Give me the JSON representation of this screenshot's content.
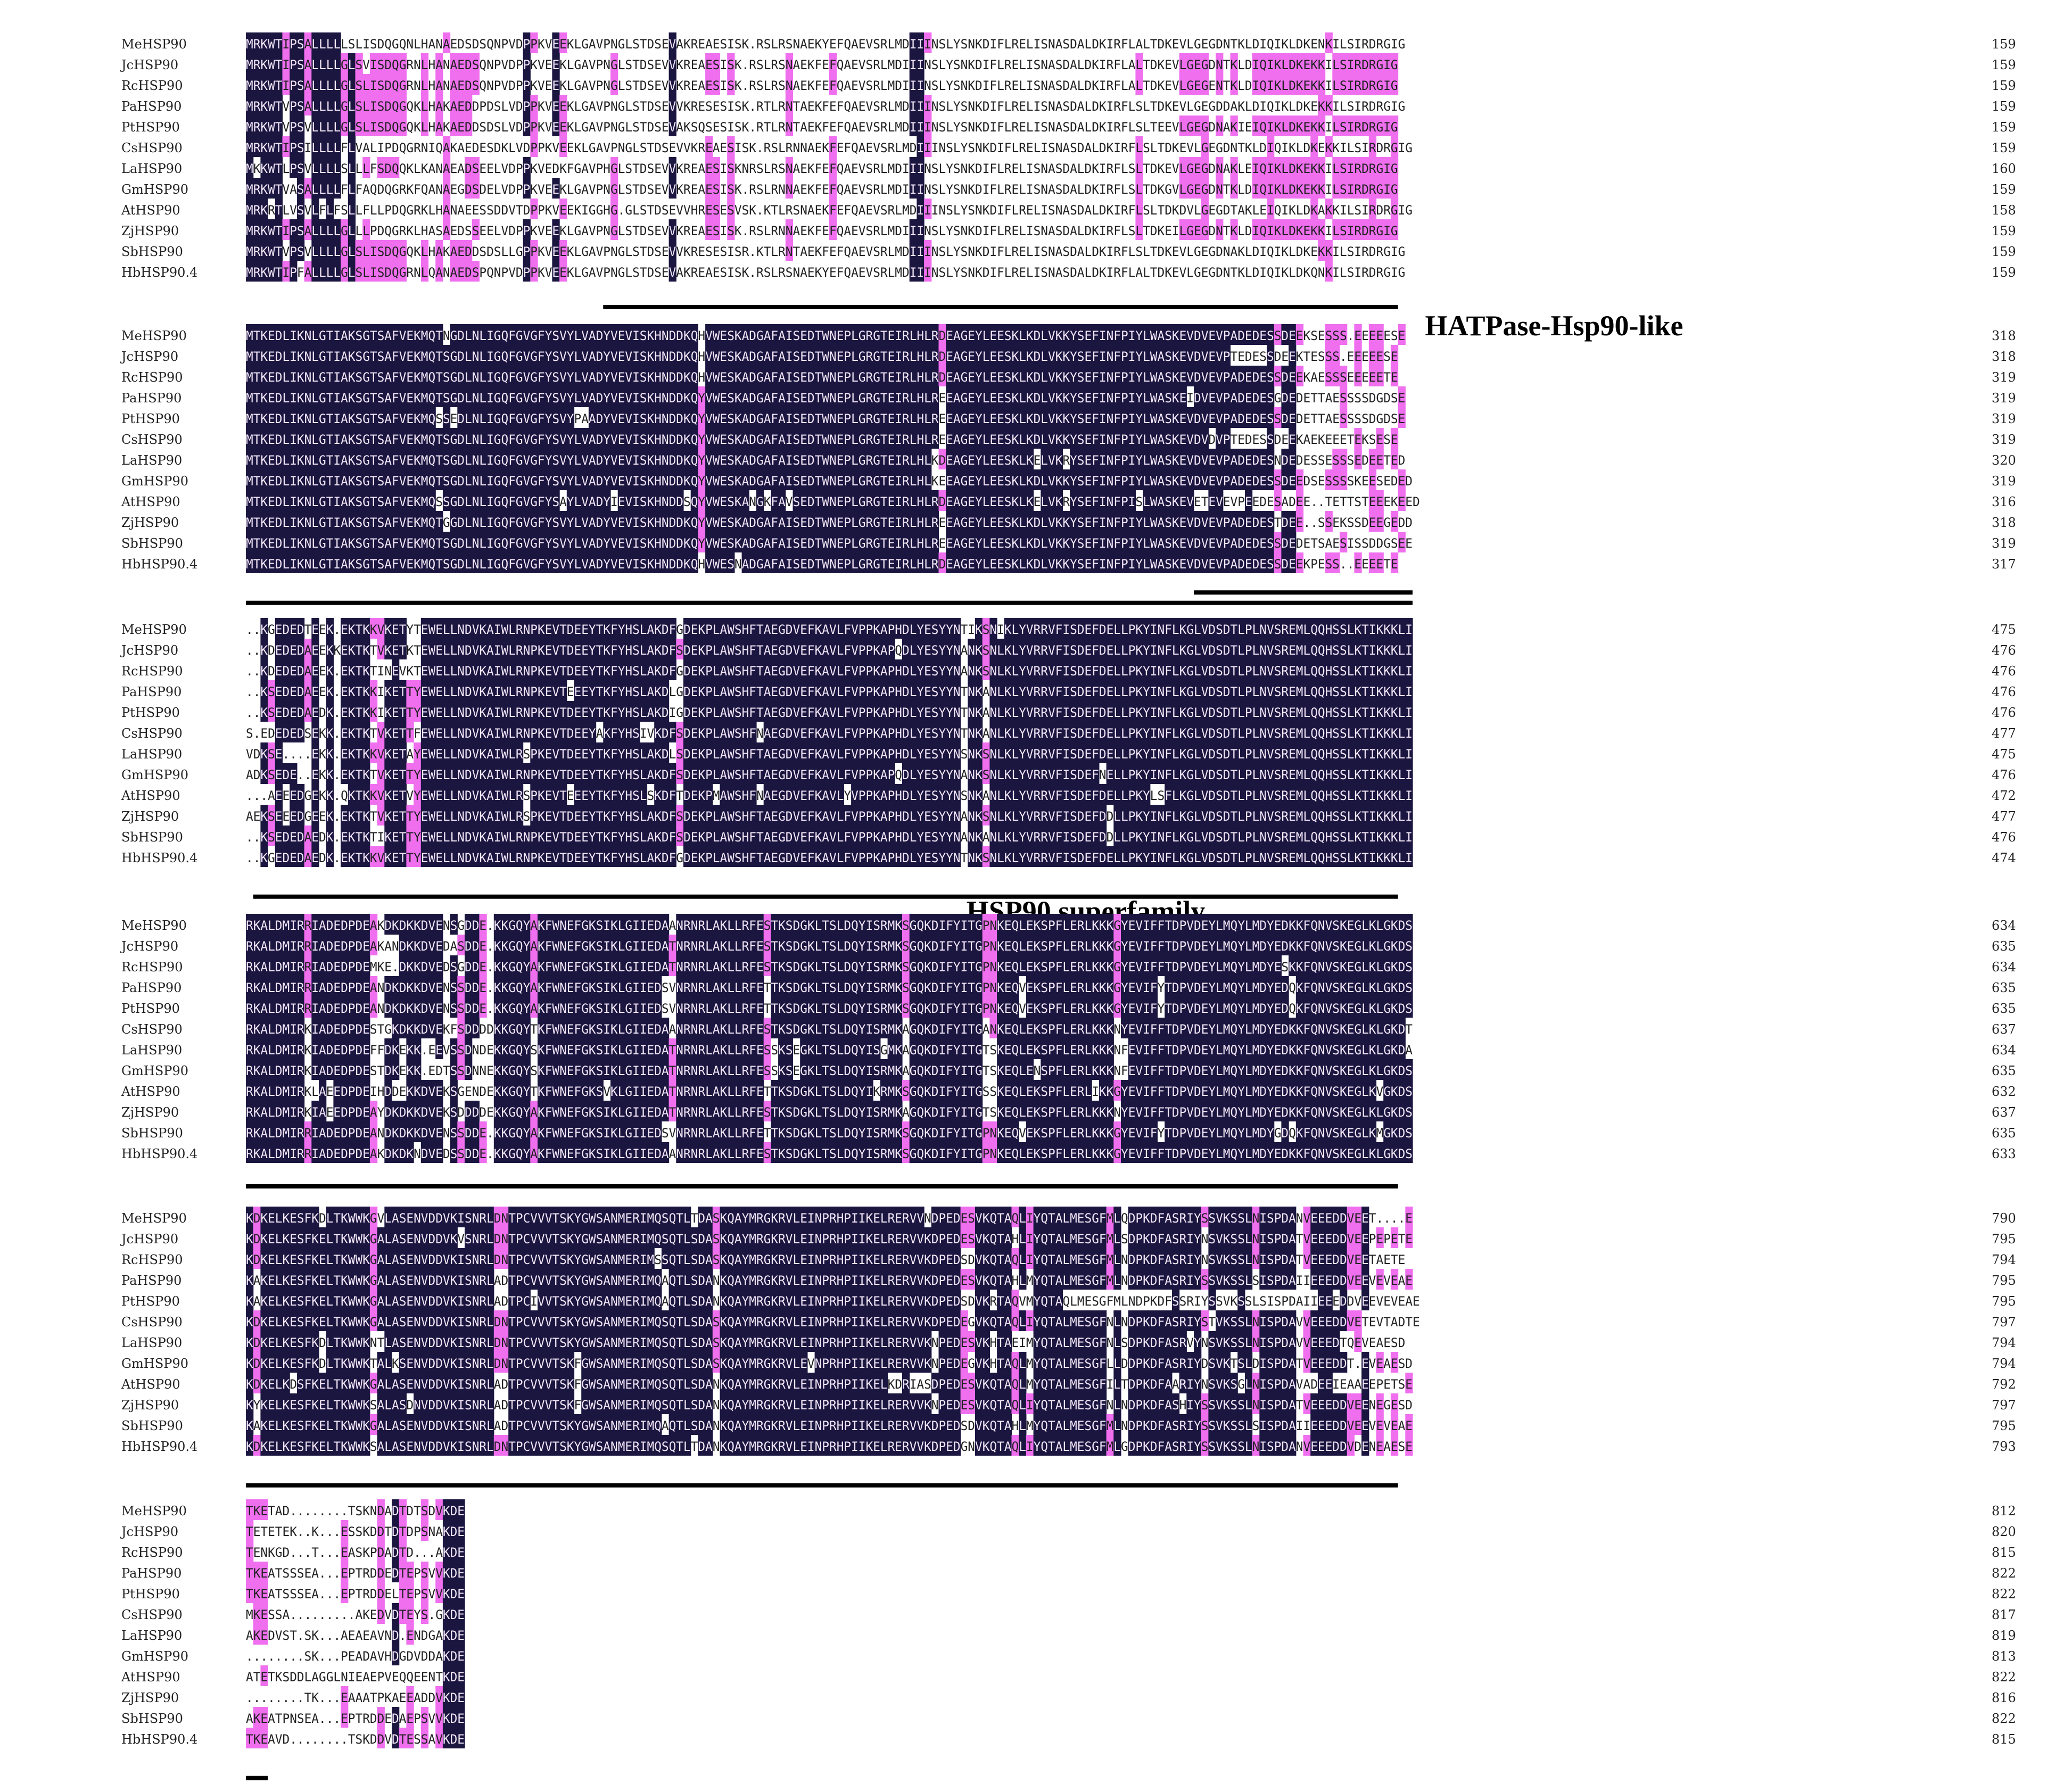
{
  "colors": {
    "identical": "#1b1640",
    "similar": "#ef6fef",
    "identical_text": "#f2e6f6",
    "plain_text": "#222222",
    "bar": "#000000"
  },
  "species": [
    "MeHSP90",
    "JcHSP90",
    "RcHSP90",
    "PaHSP90",
    "PtHSP90",
    "CsHSP90",
    "LaHSP90",
    "GmHSP90",
    "AtHSP90",
    "ZjHSP90",
    "SbHSP90",
    "HbHSP90.4"
  ],
  "blocks": [
    {
      "sequences": [
        "MRKWTIPSALLLLLSLISDQGQNLHANAEDSDSQNPVDPPKVEEKLGAVPNGLSTDSEVAKREAESISK.RSLRSNAEKYEFQAEVSRLMDIIINSLYSNKDIFLRELISNASDALDKIRFLALTDKEVLGEGDNTKLDIQIKLDKENKILSIRDRGIG",
        "MRKWTIPSALLLLGLSVISDQGRNLHANAEDSQNPVDPPKVEEKLGAVPNGLSTDSEVVKREAESISK.RSLRSNAEKFEFQAEVSRLMDIIINSLYSNKDIFLRELISNASDALDKIRFLALTDKEVLGEGDNTKLDIQIKLDKEKKILSIRDRGIG",
        "MRKWTIPSALLLLGLSLISDQGRNLHANAEDSQNPVDPPKVEEKLGAVPNGLSTDSEVVKREAESISK.RSLRSNAEKFEFQAEVSRLMDIIINSLYSNKDIFLRELISNASDALDKIRFLALTDKEVLGEGENTKLDIQIKLDKEKKILSIRDRGIG",
        "MRKWTVPSALLLLGLSLISDQGQKLHAKAEDDPDSLVDPPKVEEKLGAVPNGLSTDSEVVKRESESISK.RTLRNTAEKFEFQAEVSRLMDIIINSLYSNKDIFLRELISNASDALDKIRFLSLTDKEVLGEGDDAKLDIQIKLDKEKKILSIRDRGIG",
        "MRKWTVPSVLLLLGLSLISDQGQKLHAKAEDDSDSLVDPPKVEEKLGAVPNGLSTDSEVAKSQSESISK.RTLRNTAEKFEFQAEVSRLMDIIINSLYSNKDIFLRELISNASDALDKIRFLSLTEEVLGEGDNAKIEIQIKLDKEKKILSIRDRGIG",
        "MRKWTIPSILLLLFLVALIPDQGRNIQAKAEDESDKLVDPPKVEEKLGAVPNGLSTDSEVVKREAESISK.RSLRNNAEKFEFQAEVSRLMDIIINSLYSNKDIFLRELISNASDALDKIRFLSLTDKEVLGEGDNTKLDIQIKLDKEKKILSIRDRGIG",
        "MKKWTLPSVLLLLSLLLFSDQQKLKANAEADSEELVDPPKVEDKFGAVPHGLSTDSEVVKREAESISKNRSLRSNAEKFEFQAEVSRLMDIIINSLYSNKDIFLRELISNASDALDKIRFLSLTDKEVLGEGDNAKLEIQIKLDKEKKILSIRDRGIG",
        "MRKWTVASALLLLFLFAQDQGRKFQANAEGDSDELVDPPKVEEKLGAVPNGLSTDSEVVKREAESISK.RSLRNNAEKFEFQAEVSRLMDIIINSLYSNKDIFLRELISNASDALDKIRFLSLTDKGVLGEGDNTKLDIQIKLDKEKKILSIRDRGIG",
        "MRKRTLVSVLFLFSLLFLLPDQGRKLHANAEESSDDVTDPPKVEEKIGGHG.GLSTDSEVVHRESESVSK.KTLRSNAEKFEFQAEVSRLMDIIINSLYSNKDIFLRELISNASDALDKIRFLSLTDKDVLGEGDTAKLEIQIKLDKAKKILSIRDRGIG",
        "MRKWTIPSALLLLGLLLPDQGRKLHASAEDSSEELVDPPKVEEKLGAVPNGLSTDSEVVKREAESISK.RSLRNNAEKFEFQAEVSRLMDIIINSLYSNKDIFLRELISNASDALDKIRFLSLTDKEILGEGDNTKLDIQIKLDKEKKILSIRDRGIG",
        "MRKWTVPSVLLLLGLSLISDQGQKLHAKAEDDSDSLLGPPKVEEKLGAVPNGLSTDSEVVKRESESISR.KTLRNTAEKFEFQAEVSRLMDIIINSLYSNKDIFLRELISNASDALDKIRFLSLTDKEVLGEGDNAKLDIQIKLDKEKKILSIRDRGIG",
        "MRKWTIPFALLLLGLSLISDQGRNLQANAEDSPQNPVDPPKVEEKLGAVPNGLSTDSEVAKREAESISK.RSLRSNAEKYEFQAEVSRLMDIIINSLYSNKDIFLRELISNASDALDKIRFLALTDKEVLGEGDNTKLDIQIKLDKQNKILSIRDRGIG"
      ],
      "numbers": [
        "159",
        "159",
        "159",
        "159",
        "159",
        "159",
        "160",
        "159",
        "158",
        "159",
        "159",
        "159"
      ],
      "domain_label": "HATPase-Hsp90-like"
    },
    {
      "sequences": [
        "MTKEDLIKNLGTIAKSGTSAFVEKMQTNGDLNLIGQFGVGFYSVYLVADYVEVISKHNDDKQHVWESKADGAFAISEDTWNEPLGRGTEIRLHLRDEAGEYLEESKLKDLVKKYSEFINFPIYLWASKEVDVEVPADEDESSDEEKSESSS.EEEEESE",
        "MTKEDLIKNLGTIAKSGTSAFVEKMQTSGDLNLIGQFGVGFYSVYLVADYVEVISKHNDDKQHVWESKADGAFAISEDTWNEPLGRGTEIRLHLRDEAGEYLEESKLKDLVKKYSEFINFPIYLWASKEVDVEVPTEDESSDEEKTESSS.EEEEESE",
        "MTKEDLIKNLGTIAKSGTSAFVEKMQTSGDLNLIGQFGVGFYSVYLVADYVEVISKHNDDKQHVWESKADGAFAISEDTWNEPLGRGTEIRLHLRDEAGEYLEESKLKDLVKKYSEFINFPIYLWASKEVDVEVPADEDESSDEEKAESSSEEEEETE",
        "MTKEDLIKNLGTIAKSGTSAFVEKMQTSGDLNLIGQFGVGFYSVYLVADYVEVISKHNDDKQYVWESKADGAFAISEDTWNEPLGRGTEIRLHLREEAGEYLEESKLKDLVKKYSEFINFPIYLWASKEIDVEVPADEDESGDEDETTAESSSSDGDSE",
        "MTKEDLIKNLGTIAKSGTSAFVEKMQSSEDLNLIGQFGVGFYSVYPAADYVEVISKHNDDKQYVWESKADGAFAISEDTWNEPLGRGTEIRLHLREEAGEYLEESKLKDLVKKYSEFINFPIYLWASKEVDVEVPADEDESSDEDETTAESSSSDGDSE",
        "MTKEDLIKNLGTIAKSGTSAFVEKMQTSGDLNLIGQFGVGFYSVYLVADYVEVISKHNDDKQYVWESKADGAFAISEDTWNEPLGRGTEIRLHLREEAGEYLEESKLKDLVKKYSEFINFPIYLWASKEVDVDVPTEDESSDEEKAEKEEETEKSESE",
        "MTKEDLIKNLGTIAKSGTSAFVEKMQTSGDLNLIGQFGVGFYSVYLVADYVEVISKHNDDKQYVWESKADGAFAISEDTWNEPLGRGTEIRLHLKDEAGEYLEESKLKELVKRYSEFINFPIYLWASKEVDVEVPADEDESNDEDESSESSSEDEETED",
        "MTKEDLIKNLGTIAKSGTSAFVEKMQTSGDLNLIGQFGVGFYSVYLVADYVEVISKHNDDKQYVWESKADGAFAISEDTWNEPLGRGTEIRLHLKEEAGEYLEESKLKDLVKKYSEFINFPIYLWASKEVDVEVPADEDESSDEEDSESSSSKEESEDED",
        "MTKEDLIKNLGTIAKSGTSAFVEKMQSSGDLNLIGQFGVGFYSAYLVADYIEVISKHNDDSQYVWESKANGKFAVSEDTWNEPLGRGTEIRLHLRDEAGEYLEESKLKELVKRYSEFINFPISLWASKEVETEVEVPEEDESADEE..TETTSTEEEKEED",
        "MTKEDLIKNLGTIAKSGTSAFVEKMQTGGDLNLIGQFGVGFYSVYLVADYVEVISKHNDDKQYVWESKADGAFAISEDTWNEPLGRGTEIRLHLREEAGEYLEESKLKDLVKKYSEFINFPIYLWASKEVDVEVPADEDESTDEE..SSEKSSDEEGEDD",
        "MTKEDLIKNLGTIAKSGTSAFVEKMQTSGDLNLIGQFGVGFYSVYLVADYVEVISKHNDDKQYVWESKADGAFAISEDTWNEPLGRGTEIRLHLREEAGEYLEESKLKDLVKKYSEFINFPIYLWASKEVDVEVPADEDESSDEDETSAESISSDDGSEE",
        "MTKEDLIKNLGTIAKSGTSAFVEKMQTSGDLNLIGQFGVGFYSVYLVADYVEVISKHNDDKQHVWESNADGAFAISEDTWNEPLGRGTEIRLHLRDEAGEYLEESKLKDLVKKYSEFINFPIYLWASKEVDVEVPADEDESSDEEKPESS..EEEETE"
      ],
      "numbers": [
        "318",
        "318",
        "319",
        "319",
        "319",
        "319",
        "320",
        "319",
        "316",
        "318",
        "319",
        "317"
      ],
      "domain_label": ""
    },
    {
      "sequences": [
        "..KGEDEDTEEK.EKTKKVKETYTEWELLNDVKAIWLRNPKEVTDEEYTKFYHSLAKDFGDEKPLAWSHFTAEGDVEFKAVLFVPPKAPHDLYESYYNTIKSNIKLYVRRVFISDEFDELLPKYINFLKGLVDSDTLPLNVSREMLQQHSSLKTIKKKLI",
        "..KDEDEDAEEKKEKTKTVKETKTEWELLNDVKAIWLRNPKEVTDEEYTKFYHSLAKDFSDEKPLAWSHFTAEGDVEFKAVLFVPPKAPQDLYESYYNANKSNLKLYVRRVFISDEFDELLPKYINFLKGLVDSDTLPLNVSREMLQQHSSLKTIKKKLI",
        "..KDEDEDAEEK.EKTKTINEVKTEWELLNDVKAIWLRNPKEVTDEEYTKFYHSLAKDFGDEKPLAWSHFTAEGDVEFKAVLFVPPKAPHDLYESYYNANKSNLKLYVRRVFISDEFDELLPKYINFLKGLVDSDTLPLNVSREMLQQHSSLKTIKKKLI",
        "..KSEDEDAEEK.EKTKKIKETTYEWELLNDVKAIWLRNPKEVTEEEYTKFYHSLAKDLGDEKPLAWSHFTAEGDVEFKAVLFVPPKAPHDLYESYYNTNKANLKLYVRRVFISDEFDELLPKYINFLKGLVDSDTLPLNVSREMLQQHSSLKTIKKKLI",
        "..KSEDEDAEDK.EKTKKIKETTYEWELLNDVKAIWLRNPKEVTDEEYTKFYHSLAKDIGDEKPLAWSHFTAEGDVEFKAVLFVPPKAPHDLYESYYNTNKANLKLYVRRVFISDEFDELLPKYINFLKGLVDSDTLPLNVSREMLQQHSSLKTIKKKLI",
        "S.EDEDEDSEKK.EKTKTVKETTFEWELLNDVKAIWLRNPKEVTDEEYAKFYHSIVKDFSDEKPLAWSHFNAEGDVEFKAVLFVPPKAPHDLYESYYNTNKANLKLYVRRVFISDEFDELLPKYINFLKGLVDSDTLPLNVSREMLQQHSSLKTIKKKLI",
        "VDKSE....EKK.EKTKKVKETAYEWELLNDVKAIWLRSPKEVTDEEYTKFYHSLAKDLSDEKPLAWSHFTAEGDVEFKAVLFVPPKAPHDLYESYYNSNKSNLKLYVRRVFISDEFDELLPKYINFLKGLVDSDTLPLNVSREMLQQHSSLKTIKKKLI",
        "ADKSEDE..EKK.EKTKTVKETTYEWELLNDVKAIWLRNPKEVTDEEYTKFYHSLAKDFSDEKPLAWSHFTAEGDVEFKAVLFVPPKAPQDLYESYYNANKSNLKLYVRRVFISDEFNELLPKYINFLKGLVDSDTLPLNVSREMLQQHSSLKTIKKKLI",
        "...AEEEDGEKK.QKTKKVKETVYEWELLNDVKAIWLRSPKEVTEEEYTKFYHSLSKDFTDEKPMAWSHFNAEGDVEFKAVLYVPPKAPHDLYESYYNSNKANLKLYVRRVFISDEFDELLPKYLSFLKGLVDSDTLPLNVSREMLQQHSSLKTIKKKLI",
        "AEKSEEEDGEEK.EKTKTVKETTYEWELLNDVKAIWLRSPKEVTDEEYTKFYHSLAKDFSDEKPLAWSHFTAEGDVEFKAVLFVPPKAPHDLYESYYNANKSNLKLYVRRVFISDEFDDLLPKYINFLKGLVDSDTLPLNVSREMLQQHSSLKTIKKKLI",
        "..KSEDEDAEDK.EKTKTIKETTYEWELLNDVKAIWLRNPKEVTDEEYTKFYHSLAKDFSDEKPLAWSHFTAEGDVEFKAVLFVPPKAPHDLYESYYNANKANLKLYVRRVFISDEFDDLLPKYINFLKGLVDSDTLPLNVSREMLQQHSSLKTIKKKLI",
        "..KGEDEDAEDK.EKTKKVKETTYEWELLNDVKAIWLRNPKEVTDEEYTKFYHSLAKDFGDEKPLAWSHFTAEGDVEFKAVLFVPPKAPHDLYESYYNTNKSNLKLYVRRVFISDEFDELLPKYINFLKGLVDSDTLPLNVSREMLQQHSSLKTIKKKLI"
      ],
      "numbers": [
        "475",
        "476",
        "476",
        "476",
        "476",
        "477",
        "475",
        "476",
        "472",
        "477",
        "476",
        "474"
      ],
      "domain_label": "HSP90 superfamily"
    },
    {
      "sequences": [
        "RKALDMIRRIADEDPDEAKDKDKKDVENSGDDE.KKGQYAKFWNEFGKSIKLGIIEDAANRNRLAKLLRFESTKSDGKLTSLDQYISRMKSGQKDIFYITGPNKEQLEKSPFLERLKKKGYEVIFFTDPVDEYLMQYLMDYEDKKFQNVSKEGLKLGKDS",
        "RKALDMIRRIADEDPDEAKANDKKDVEDASDDE.KKGQYAKFWNEFGKSIKLGIIEDATNRNRLAKLLRFESTKSDGKLTSLDQYISRMKSGQKDIFYITGPNKEQLEKSPFLERLKKKGYEVIFFTDPVDEYLMQYLMDYEDKKFQNVSKEGLKLGKDS",
        "RKALDMIRRIADEDPDEMKE.DKKDVEDSGDDE.KKGQYAKFWNEFGKSIKLGIIEDATNRNRLAKLLRFESTKSDGKLTSLDQYISRMKSGQKDIFYITGPNKEQLEKSPFLERLKKKGYEVIFFTDPVDEYLMQYLMDYESKKFQNVSKEGLKLGKDS",
        "RKALDMIRRIADEDPDEANDKDKKDVENSSDDE.KKGQYAKFWNEFGKSIKLGIIEDSVNRNRLAKLLRFETTKSDGKLTSLDQYISRMKSGQKDIFYITGPNKEQVEKSPFLERLKKKGYEVIFYTDPVDEYLMQYLMDYEDQKFQNVSKEGLKLGKDS",
        "RKALDMIRRIADEDPDEANDKDKKDVENSSDDE.KKGQYAKFWNEFGKSIKLGIIEDSVNRNRLAKLLRFETTKSDGKLTSLDQYISRMKSGQKDIFYITGPNKEQVEKSPFLERLKKKGYEVIFYTDPVDEYLMQYLMDYEDQKFQNVSKEGLKLGKDS",
        "RKALDMIRKIADEDPDESTGKDKKDVEKFSDDDDKKGQYTKFWNEFGKSIKLGIIEDAANRNRLAKLLRFESTKSDGKLTSLDQYISRMKAGQKDIFYITGANKEQLEKSPFLERLKKKNYEVIFFTDPVDEYLMQYLMDYEDKKFQNVSKEGLKLGKDT",
        "RKALDMIRKIADEDPDEFFDKEKK.EEVSSDNDEKKGQYSKFWNEFGKSIKLGIIEDATNRNRLAKLLRFESSKSEGKLTSLDQYISGMKAGQKDIFYITGTSKEQLEKSPFLERLKKKNFEVIFFTDPVDEYLMQYLMDYEDKKFQNVSKEGLKLGKDA",
        "RKALDMIRKIADEDPDESTDKEKK.EDTSSDNNEKKGQYSKFWNEFGKSIKLGIIEDATNRNRLAKLLRFESSKSEGKLTSLDQYISRMKAGQKDIFYITGTSKEQLENSPFLERLKKKNFEVIFFTDPVDEYLMQYLMDYEDKKFQNVSKEGLKLGKDS",
        "RKALDMIRKLAEEDPDEIHDDEKKDVEKSGENDEKKGQYTKFWNEFGKSVKLGIIEDATNRNRLAKLLRFETTKSDGKLTSLDQYIKRMKSGQKDIFYITGSSKEQLEKSPFLERLIKKGYEVIFFTDPVDEYLMQYLMDYEDKKFQNVSKEGLKVGKDS",
        "RKALDMIRKIAEEDPDEAYDKDKKDVEKSDDDDEKKGQYAKFWNEFGKSIKLGIIEDATNRNRLAKLLRFESTKSDGKLTSLDQYISRMKAGQKDIFYITGTSKEQLEKSPFLERLKKKNYEVIFFTDPVDEYLMQYLMDYEDKKFQNVSKEGLKLGKDS",
        "RKALDMIRRIADEDPDEANDKDKKDVENSSDDE.KKGQYAKFWNEFGKSIKLGIIEDSVNRNRLAKLLRFETTKSDGKLTSLDQYISRMKSGQKDIFYITGPNKEQVEKSPFLERLKKKGYEVIFYTDPVDEYLMQYLMDYGDQKFQNVSKEGLKMGKDS",
        "RKALDMIRRIADEDPDEAKDKDKNDVEDSSDDE.KKGQYAKFWNEFGKSIKLGIIEDAANRNRLAKLLRFESTKSDGKLTSLDQYISRMKSGQKDIFYITGPNKEQLEKSPFLERLKKKGYEVIFFTDPVDEYLMQYLMDYEDKKFQNVSKEGLKLGKDS"
      ],
      "numbers": [
        "634",
        "635",
        "634",
        "635",
        "635",
        "637",
        "634",
        "635",
        "632",
        "637",
        "635",
        "633"
      ],
      "domain_label": ""
    },
    {
      "sequences": [
        "KDKELKESFKDLTKWWKGVLASENVDDVKISNRLDNTPCVVVTSKYGWSANMERIMQSQTLTDASKQAYMRGKRVLEINPRHPIIKELRERVVNDPEDESVKQTAQLIYQTALMESGFMLQDPKDFASRIYSSVKSSLNISPDANVEEEDDVEET....E",
        "KDKELKESFKELTKWWKGALASENVDDVKVSNRLDNTPCVVVTSKYGWSANMERIMQSQTLSDASKQAYMRGKRVLEINPRHPIIKELRERVVKDPEDESVKQTAHLIYQTALMESGFMLSDPKDFASRIYNSVKSSLNISPDATVEEEDDVEEPEPETE",
        "KDKELKESFKELTKWWKGALASENVDDVKISNRLDNTPCVVVTSKYGWSANMERIMSSQTLSDASKQAYMRGKRVLEINPRHPIIKELRERVVKDPEDSDVKQTAQLIYQTALMESGFMLNDPKDFASRIYNSVKSSLNISPDATVEEEDDVEETAETE",
        "KAKELKESFKELTKWWKGALASENVDDVKISNRLADTPCVVVTSKYGWSANMERIMQAQTLSDANKQAYMRGKRVLEINPRHPIIKELRERVVKDPEDESVKQTAHLMYQTALMESGFMLNDPKDFASRIYSSVKSSLSISPDAIIEEEDDVEEVEVEAE",
        "KAKELKESFKELTKWWKGALASENVDDVKISNRLADTPCIVVTSKYGWSANMERIMQAQTLSDANKQAYMRGKRVLEINPRHPIIKELRERVVKDPEDSDVKRTAQVMYQTAQLMESGFMLNDPKDFSSRIYSSVKSSLSISPDAIIEEEDDVEEVEVEAE",
        "KDKELKESFKELTKWWKGALASENVDDVKISNRLDNTPCVVVTSKYGWSANMERIMQSQTLSDASKQAYMRGKRVLEINPRHPIIKELRERVVKDPEDEGVKQTAQLIYQTALMESGFNLNDPKDFASRIYSTVKSSLNISPDAVVEEEDDVETEVTADTE",
        "KDKELKESFKDLTKWWKNTLASENVDDVKISNRLDNTPCVVVTSKYGWSANMERIMQSQTLSDASKQAYMRGKRVLEINPRHPIIKELRERVVKNPEDESVKHTAEIMYQTALMESGFNLSDPKDFASRVYNSVKSSLNISPDAVVEEEDTQEVEAESD",
        "KDKELKESFKDLTKWWKTALKSENVDDVKISNRLDNTPCVVVTSKFGWSANMERIMQSQTLSDASKQAYMRGKRVLEVNPRHPIIKELRERVVKNPEDEGVKHTAQLMYQTALMESGFLLDDPKDFASRIYDSVKTSLDISPDATVEEEDDT.EVEAESD",
        "KDKELKDSFKELTKWWKGALASENVDDVKISNRLADTPCVVVTSKFGWSANMERIMQSQTLSDANKQAYMRGKRVLEINPRHPIIKELKDRIASDPEDESVKQTAQLMYQTALMESGFILTDPKDFAARIYNSVKSGLNISPDAVADEEIEAAEEPETSE",
        "KYKELKESFKELTKWWKSALASDNVDDVKISNRLADTPCVVVTSKFGWSANMERIMQSQTLSDANKQAYMRGKRVLEINPRHPIIKELRERVVKNPEDESVKQTAQLIYQTALMESGFNLNDPKDFASHIYSSVKSSLNISPDATVEEEDDVEENEGESD",
        "KAKELKESFKELTKWWKGALASENVDDVKISNRLADTPCVVVTSKYGWSANMERIMQAQTLSDANKQAYMRGKRVLEINPRHPIIKELRERVVKDPEDSDVKQTAHLMYQTALMESGFMLNDPKDFASRIYSSVKSSLSISPDAIIEEEDDVEEVEVEAE",
        "KDKELKESFKELTKWWKSALASENVDDVKISNRLDNTPCVVVTSKYGWSANMERIMQSQTLTDANKQAYMRGKRVLEINPRHPIIKELRERVVKDPEDGNVKQTAQLIYQTALMESGFMLGDPKDFASRIYSSVKSSLNISPDANVEEEDDVDENEAESE"
      ],
      "numbers": [
        "790",
        "795",
        "794",
        "795",
        "795",
        "797",
        "794",
        "794",
        "792",
        "797",
        "795",
        "793"
      ],
      "domain_label": ""
    },
    {
      "sequences": [
        "TKETAD........TSKNDADTDTSDVKDE",
        "TETETEK..K...ESSKDDTDTDPSNAKDE",
        "TENKGD...T...EASKPDADTD...AKDE",
        "TKEATSSSEA...EPTRDDEDTEPSVVKDE",
        "TKEATSSSEA...EPTRDDELTEPSVVKDE",
        "MKESSA.........AKEDVDTEYS.GKDE",
        "AKEDVST.SK...AEAEAVND.ENDGAKDE",
        "........SK...PEADAVHDGDVDDAKDE",
        "ATETKSDDLAGGLNIEAEPVEQQEENTKDE",
        "........TK...EAAATPKAEEADDVKDE",
        "AKEATPNSEA...EPTRDDEDAEPSVVKDE",
        "TKEAVD........TSKDDVDTESSAVKDE"
      ],
      "numbers": [
        "812",
        "820",
        "815",
        "822",
        "822",
        "817",
        "819",
        "813",
        "822",
        "816",
        "822",
        "815"
      ],
      "domain_label": ""
    }
  ]
}
